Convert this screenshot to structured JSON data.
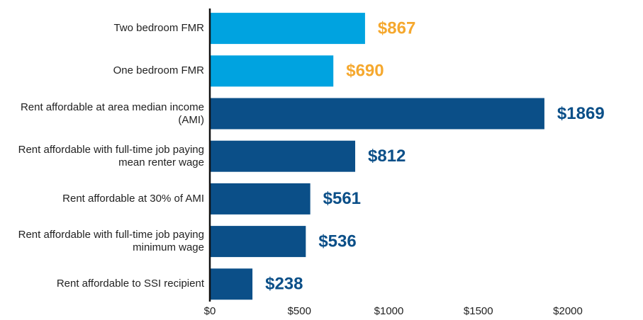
{
  "chart_data": {
    "type": "bar",
    "orientation": "horizontal",
    "categories": [
      "Two bedroom FMR",
      "One bedroom FMR",
      "Rent affordable at area median income (AMI)",
      "Rent affordable with full-time job paying mean renter wage",
      "Rent affordable at 30% of AMI",
      "Rent affordable with full-time job paying minimum wage",
      "Rent affordable to SSI recipient"
    ],
    "values": [
      867,
      690,
      1869,
      812,
      561,
      536,
      238
    ],
    "value_labels": [
      "$867",
      "$690",
      "$1869",
      "$812",
      "$561",
      "$536",
      "$238"
    ],
    "colors": [
      "#00a3e0",
      "#00a3e0",
      "#0b4f88",
      "#0b4f88",
      "#0b4f88",
      "#0b4f88",
      "#0b4f88"
    ],
    "label_colors": [
      "#f5a82e",
      "#f5a82e",
      "#0b4f88",
      "#0b4f88",
      "#0b4f88",
      "#0b4f88",
      "#0b4f88"
    ],
    "xlim": [
      0,
      2000
    ],
    "xticks": [
      {
        "value": 0,
        "label": "$0"
      },
      {
        "value": 500,
        "label": "$500"
      },
      {
        "value": 1000,
        "label": "$1000"
      },
      {
        "value": 1500,
        "label": "$1500"
      },
      {
        "value": 2000,
        "label": "$2000"
      }
    ],
    "grid": false
  }
}
